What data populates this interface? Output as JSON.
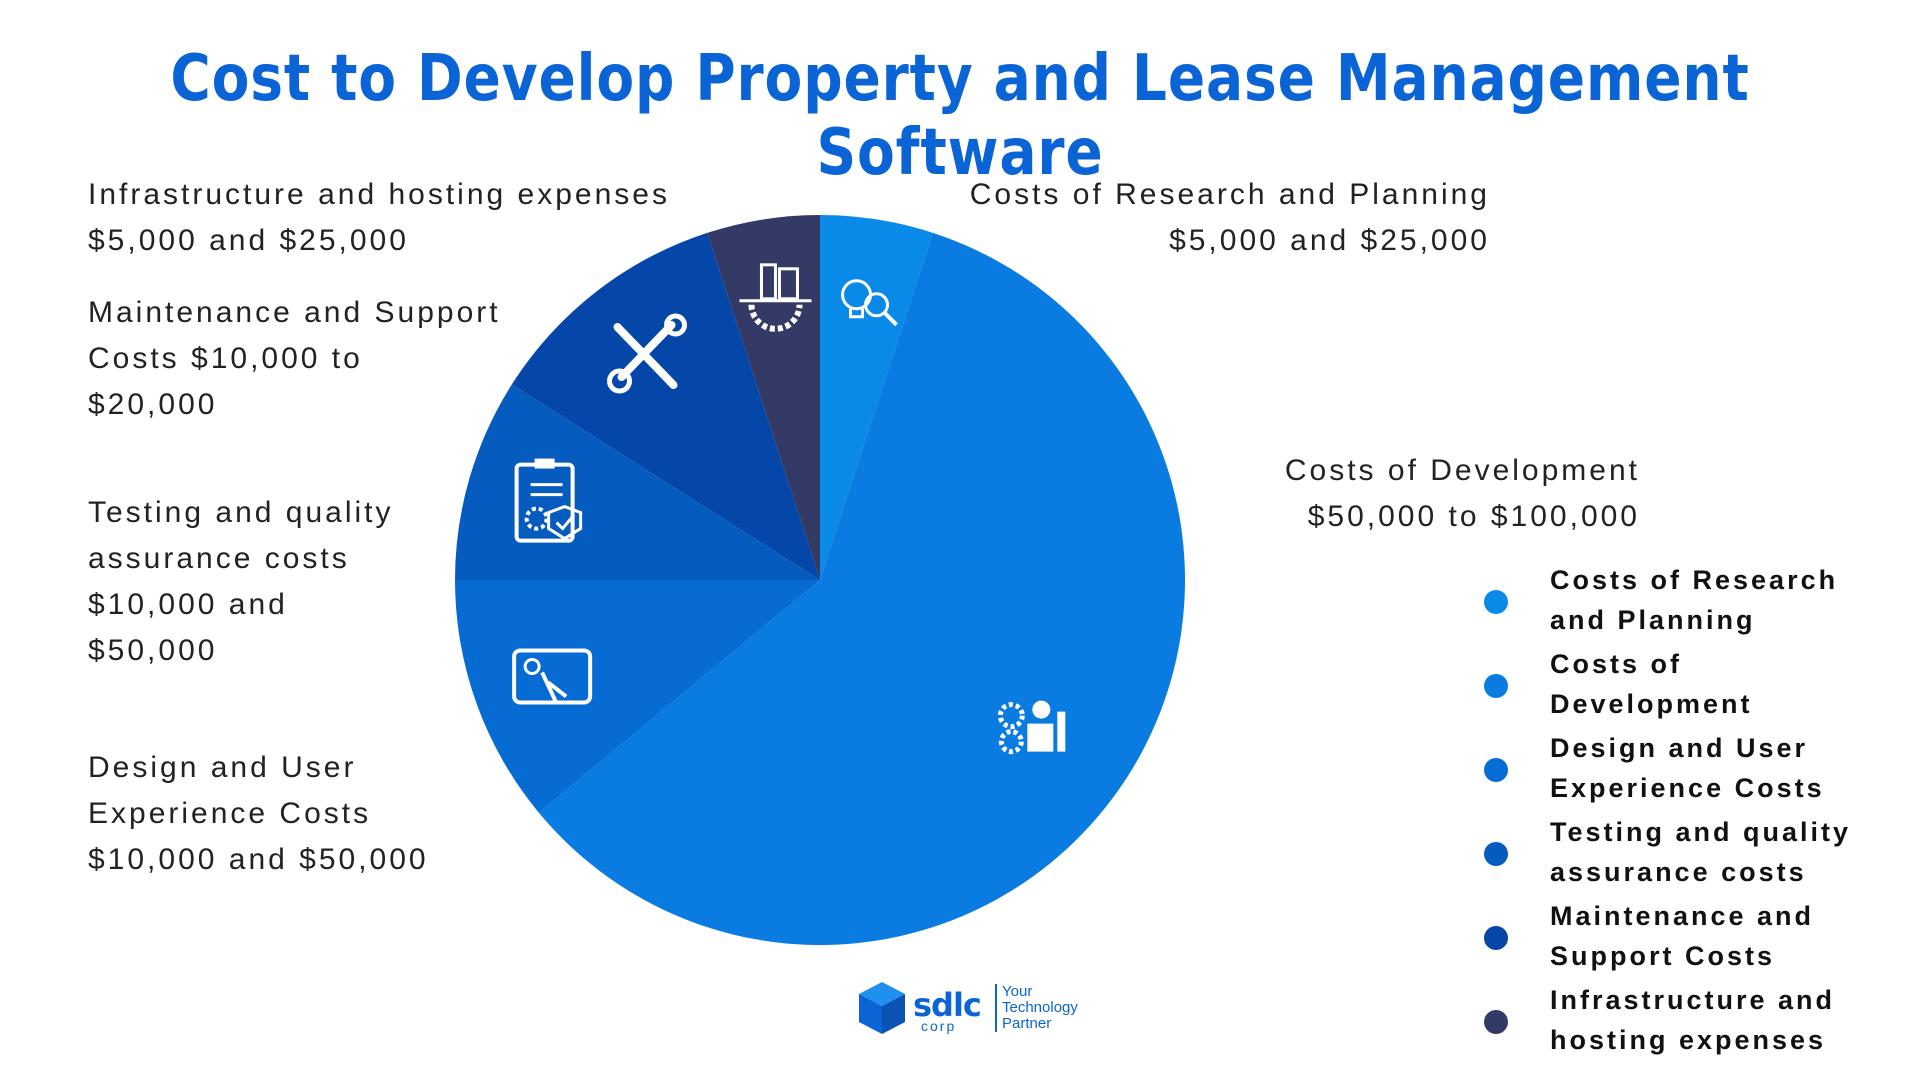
{
  "title": "Cost to Develop Property and Lease Management Software",
  "callouts": {
    "infrastructure": [
      "Infrastructure and hosting expenses",
      "$5,000 and $25,000"
    ],
    "research": [
      "Costs of Research and Planning",
      "$5,000 and $25,000"
    ],
    "maintenance": [
      "Maintenance and Support",
      "Costs $10,000 to",
      "$20,000"
    ],
    "development": [
      "Costs of Development",
      "$50,000 to $100,000"
    ],
    "testing": [
      "Testing and quality",
      "assurance costs",
      "$10,000 and",
      "$50,000"
    ],
    "design": [
      "Design and User",
      "Experience Costs",
      "$10,000 and $50,000"
    ]
  },
  "legend": [
    {
      "lines": [
        "Costs of Research",
        "and Planning"
      ],
      "color": "#0a8ae8"
    },
    {
      "lines": [
        "Costs of",
        "Development"
      ],
      "color": "#0a7be0"
    },
    {
      "lines": [
        "Design and User",
        "Experience Costs"
      ],
      "color": "#066bd2"
    },
    {
      "lines": [
        "Testing and quality",
        "assurance costs"
      ],
      "color": "#055bbe"
    },
    {
      "lines": [
        "Maintenance and",
        "Support Costs"
      ],
      "color": "#0547a8"
    },
    {
      "lines": [
        "Infrastructure and",
        "hosting expenses"
      ],
      "color": "#343a66"
    }
  ],
  "logo": {
    "word": "sdlc",
    "sub": "corp",
    "tagline": [
      "Your",
      "Technology",
      "Partner"
    ]
  },
  "chart_data": {
    "type": "pie",
    "title": "Cost to Develop Property and Lease Management Software",
    "categories": [
      "Costs of Research and Planning",
      "Costs of Development",
      "Design and User Experience Costs",
      "Testing and quality assurance costs",
      "Maintenance and Support Costs",
      "Infrastructure and hosting expenses"
    ],
    "values": [
      5,
      59,
      11,
      9,
      11,
      5
    ],
    "colors": [
      "#0a8ae8",
      "#0a7be0",
      "#066bd2",
      "#055bbe",
      "#0547a8",
      "#343a66"
    ],
    "icons": [
      "idea-search-icon",
      "development-gears-icon",
      "tablet-touch-icon",
      "clipboard-check-icon",
      "wrench-screwdriver-icon",
      "city-gear-icon"
    ],
    "legend_position": "right"
  }
}
